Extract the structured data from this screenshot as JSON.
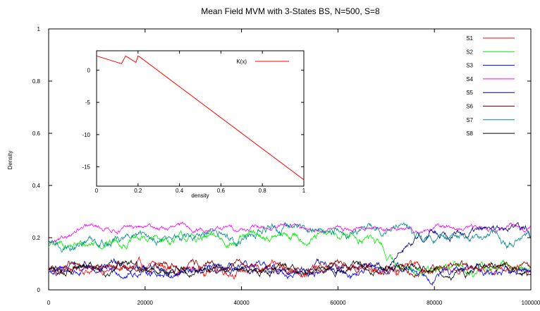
{
  "chart_data": [
    {
      "type": "line",
      "title": "Mean Field MVM with 3-States BS, N=500, S=8",
      "xlabel": "",
      "ylabel": "Density",
      "xlim": [
        0,
        100000
      ],
      "ylim": [
        0,
        1
      ],
      "x_ticks": [
        0,
        20000,
        40000,
        60000,
        80000,
        100000
      ],
      "x_tick_labels": [
        "0",
        "20000",
        "40000",
        "60000",
        "80000",
        "100000"
      ],
      "y_ticks": [
        0,
        0.2,
        0.4,
        0.6,
        0.8,
        1
      ],
      "y_tick_labels": [
        "0",
        "0.2",
        "0.4",
        "0.6",
        "0.8",
        "1"
      ],
      "legend_position": "top-right",
      "grid": false,
      "series": [
        {
          "name": "S1",
          "color": "#ff0000",
          "mean": 0.08,
          "noise": 0.018,
          "segments": [
            [
              0,
              100000,
              0.08
            ]
          ]
        },
        {
          "name": "S2",
          "color": "#00ee00",
          "mean": 0.18,
          "noise": 0.02,
          "segments": [
            [
              0,
              8000,
              0.17
            ],
            [
              8000,
              40000,
              0.19
            ],
            [
              40000,
              67000,
              0.2
            ],
            [
              67000,
              69000,
              0.15
            ],
            [
              69000,
              100000,
              0.08
            ]
          ]
        },
        {
          "name": "S3",
          "color": "#0000ff",
          "mean": 0.07,
          "noise": 0.018,
          "segments": [
            [
              0,
              100000,
              0.07
            ]
          ]
        },
        {
          "name": "S4",
          "color": "#ff00ff",
          "mean": 0.23,
          "noise": 0.012,
          "segments": [
            [
              0,
              3000,
              0.18
            ],
            [
              3000,
              100000,
              0.235
            ]
          ]
        },
        {
          "name": "S5",
          "color": "#000080",
          "mean": 0.08,
          "noise": 0.018,
          "segments": [
            [
              0,
              70000,
              0.08
            ],
            [
              70000,
              74000,
              0.16
            ],
            [
              74000,
              100000,
              0.225
            ]
          ]
        },
        {
          "name": "S6",
          "color": "#8b0000",
          "mean": 0.08,
          "noise": 0.018,
          "segments": [
            [
              0,
              100000,
              0.085
            ]
          ]
        },
        {
          "name": "S7",
          "color": "#008b8b",
          "mean": 0.2,
          "noise": 0.02,
          "segments": [
            [
              0,
              6000,
              0.17
            ],
            [
              6000,
              40000,
              0.2
            ],
            [
              40000,
              75000,
              0.235
            ],
            [
              75000,
              100000,
              0.19
            ]
          ]
        },
        {
          "name": "S8",
          "color": "#000000",
          "mean": 0.08,
          "noise": 0.018,
          "segments": [
            [
              0,
              100000,
              0.08
            ]
          ]
        }
      ]
    },
    {
      "type": "line",
      "title": "",
      "xlabel": "density",
      "ylabel": "",
      "xlim": [
        0,
        1
      ],
      "ylim": [
        -18,
        3
      ],
      "x_ticks": [
        0,
        0.2,
        0.4,
        0.6,
        0.8,
        1
      ],
      "x_tick_labels": [
        "0",
        "0.2",
        "0.4",
        "0.6",
        "0.8",
        "1"
      ],
      "y_ticks": [
        0,
        -5,
        -10,
        -15
      ],
      "y_tick_labels": [
        "0",
        "-5",
        "-10",
        "-15"
      ],
      "legend_position": "top-right",
      "series": [
        {
          "name": "K(x)",
          "color": "#ff0000",
          "x": [
            0,
            0.12,
            0.14,
            0.19,
            0.2,
            0.21,
            1
          ],
          "y": [
            2.2,
            1.0,
            2.2,
            1.2,
            2.2,
            2.0,
            -17
          ]
        }
      ]
    }
  ]
}
